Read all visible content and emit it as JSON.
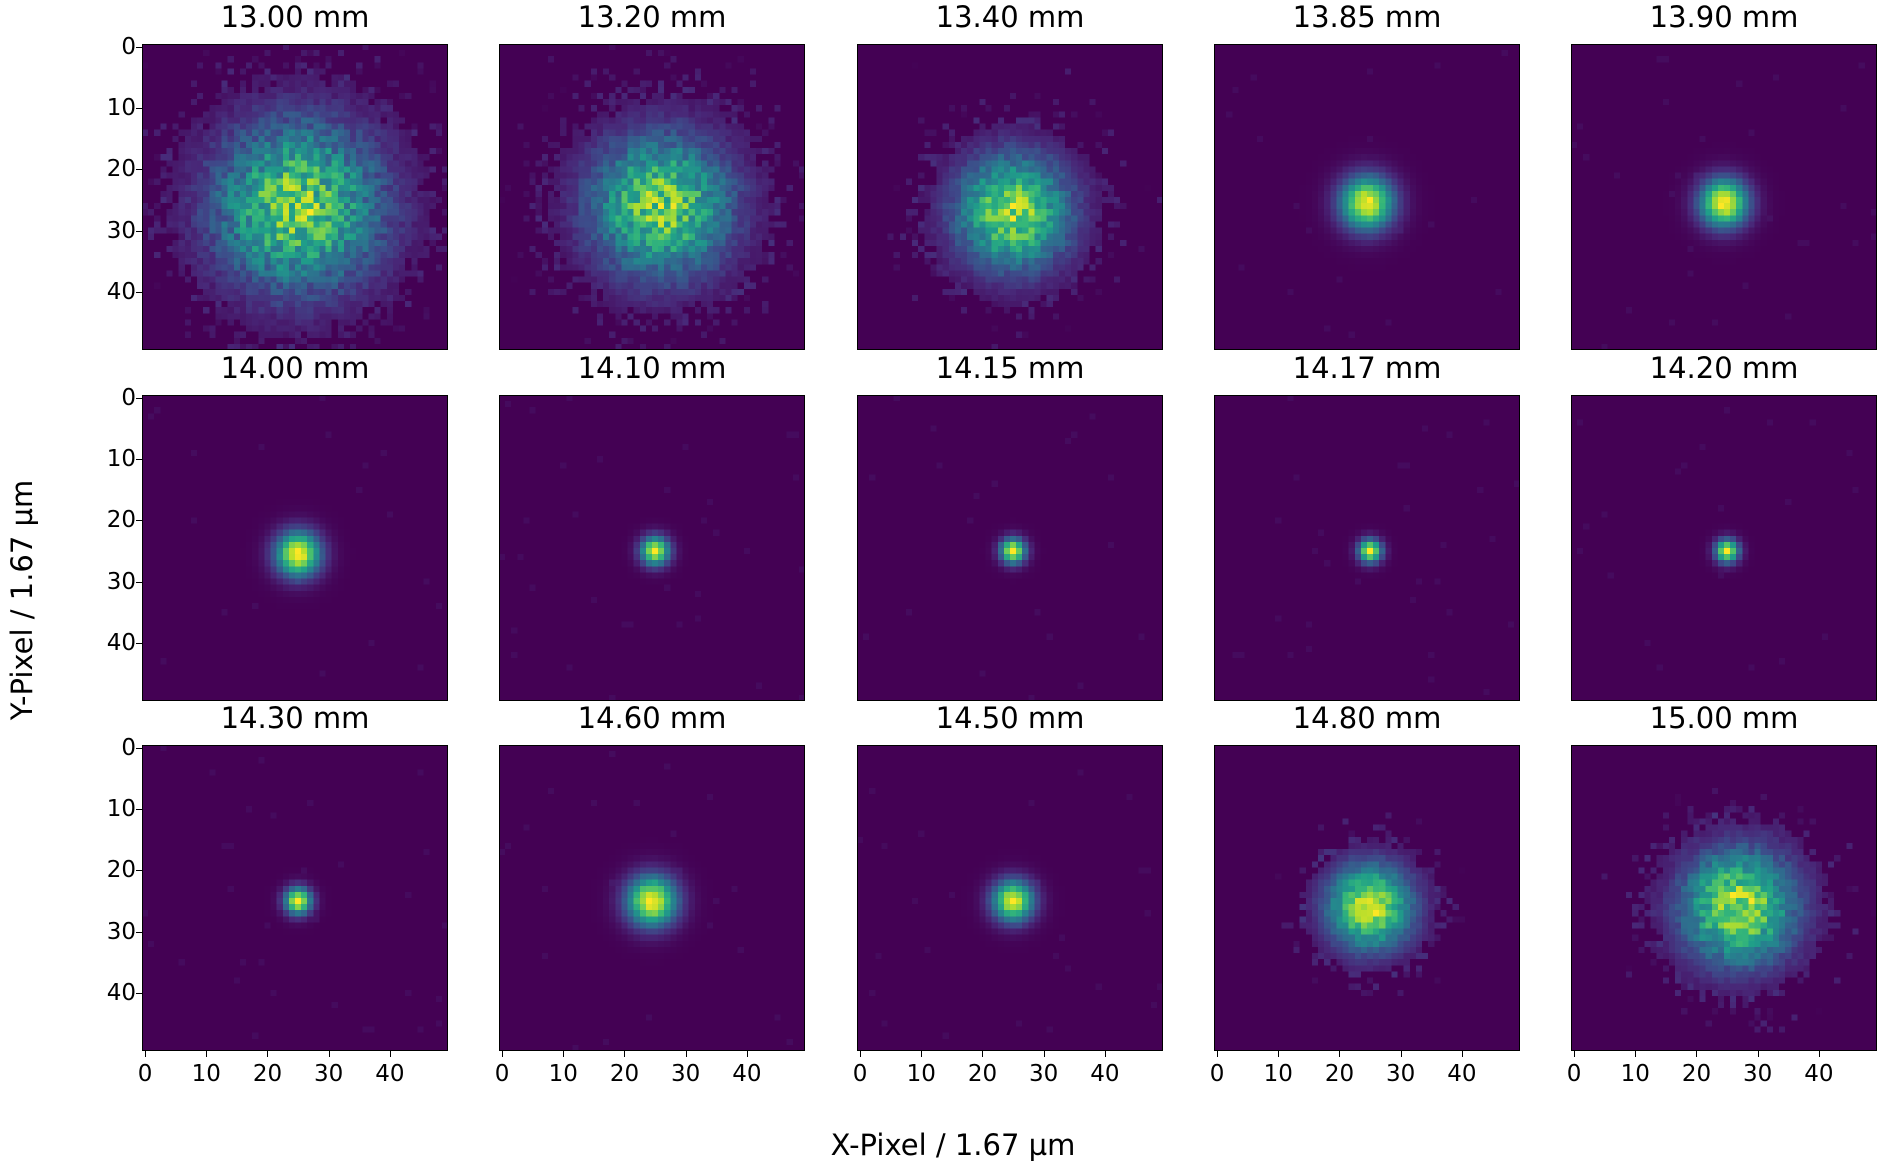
{
  "chart_data": {
    "type": "heatmap",
    "colormap": "viridis",
    "xlabel": "X-Pixel / 1.67 µm",
    "ylabel": "Y-Pixel / 1.67 µm",
    "grid_size": [
      50,
      50
    ],
    "xticks": [
      "0",
      "10",
      "20",
      "30",
      "40"
    ],
    "yticks": [
      "0",
      "10",
      "20",
      "30",
      "40"
    ],
    "tick_values": [
      0,
      10,
      20,
      30,
      40
    ],
    "layout": {
      "rows": 3,
      "cols": 5
    },
    "panels": [
      {
        "title": "13.00 mm",
        "center": [
          25,
          26
        ],
        "sigma": 9.5,
        "noise": 0.35
      },
      {
        "title": "13.20 mm",
        "center": [
          26,
          26
        ],
        "sigma": 8.0,
        "noise": 0.3
      },
      {
        "title": "13.40 mm",
        "center": [
          25,
          27
        ],
        "sigma": 6.5,
        "noise": 0.25
      },
      {
        "title": "13.85 mm",
        "center": [
          24.5,
          25.5
        ],
        "sigma": 3.0,
        "noise": 0.05
      },
      {
        "title": "13.90 mm",
        "center": [
          24.5,
          25.5
        ],
        "sigma": 2.7,
        "noise": 0.05
      },
      {
        "title": "14.00 mm",
        "center": [
          25,
          25.5
        ],
        "sigma": 2.5,
        "noise": 0.04
      },
      {
        "title": "14.10 mm",
        "center": [
          25,
          25
        ],
        "sigma": 1.6,
        "noise": 0.03
      },
      {
        "title": "14.15 mm",
        "center": [
          25,
          25
        ],
        "sigma": 1.4,
        "noise": 0.03
      },
      {
        "title": "14.17 mm",
        "center": [
          25,
          25
        ],
        "sigma": 1.3,
        "noise": 0.03
      },
      {
        "title": "14.20 mm",
        "center": [
          25,
          25
        ],
        "sigma": 1.3,
        "noise": 0.03
      },
      {
        "title": "14.30 mm",
        "center": [
          25,
          25
        ],
        "sigma": 1.5,
        "noise": 0.03
      },
      {
        "title": "14.60 mm",
        "center": [
          24.5,
          25
        ],
        "sigma": 2.8,
        "noise": 0.05
      },
      {
        "title": "14.50 mm",
        "center": [
          25,
          25
        ],
        "sigma": 2.3,
        "noise": 0.04
      },
      {
        "title": "14.80 mm",
        "center": [
          25,
          26
        ],
        "sigma": 4.8,
        "noise": 0.15
      },
      {
        "title": "15.00 mm",
        "center": [
          27,
          26
        ],
        "sigma": 6.5,
        "noise": 0.25
      }
    ]
  }
}
